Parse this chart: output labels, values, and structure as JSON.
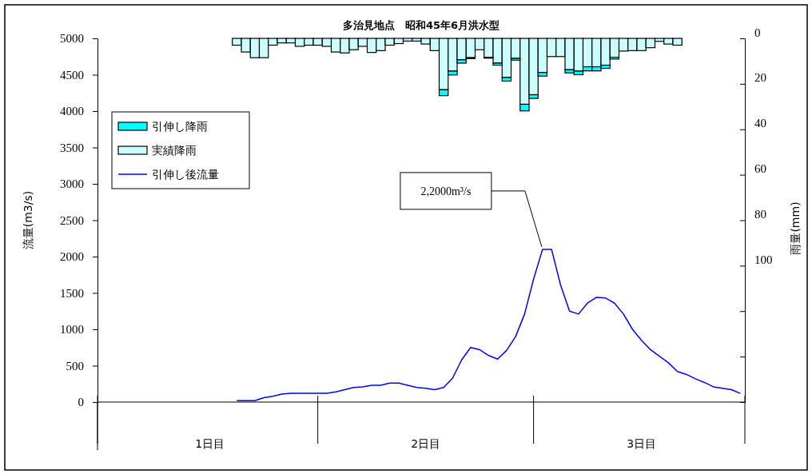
{
  "chart_data": {
    "type": "bar",
    "title": "多治見地点　昭和45年6月洪水型",
    "ylabel": "流量(m3/s)",
    "y2label": "雨量(mm)",
    "categories": [
      null,
      null,
      null,
      null,
      null,
      null,
      null,
      null,
      null,
      null,
      null,
      null,
      "1日目",
      null,
      null,
      null,
      null,
      null,
      null,
      null,
      null,
      null,
      null,
      null,
      null,
      null,
      null,
      null,
      null,
      null,
      null,
      null,
      null,
      null,
      null,
      null,
      "2日目",
      null,
      null,
      null,
      null,
      null,
      null,
      null,
      null,
      null,
      null,
      null,
      null,
      null,
      null,
      null,
      null,
      null,
      null,
      null,
      null,
      null,
      null,
      null,
      "3日目",
      null,
      null,
      null,
      null,
      null,
      null,
      null,
      null,
      null,
      null,
      null
    ],
    "ylim": [
      0,
      5000
    ],
    "yticks": [
      0,
      500,
      1000,
      1500,
      2000,
      2500,
      3000,
      3500,
      4000,
      4500,
      5000
    ],
    "y2lim": [
      160,
      0
    ],
    "y2ticks": [
      0,
      20,
      40,
      60,
      80,
      100,
      {
        "value": 120,
        "label": null
      },
      {
        "value": 140,
        "label": null
      },
      {
        "value": 160,
        "label": null
      }
    ],
    "stacked": true,
    "grid": false,
    "legend": "top left",
    "marker": "none",
    "line_style": "solid",
    "annotations": [
      "2,2000m³/s"
    ],
    "series": [
      {
        "name": "実績降雨",
        "axis": "y2",
        "color": "#ccffff",
        "values": [
          null,
          null,
          null,
          null,
          null,
          null,
          null,
          null,
          null,
          null,
          null,
          null,
          null,
          null,
          null,
          3,
          6,
          8.5,
          8.5,
          3,
          2,
          2,
          3.5,
          3,
          3,
          3.5,
          6,
          6.4,
          5,
          3.5,
          6.2,
          5.4,
          3,
          2.3,
          1.2,
          1.2,
          2.5,
          5.4,
          22.6,
          14.4,
          9.4,
          8.5,
          5,
          8.4,
          10.9,
          17.2,
          8.8,
          29,
          24.8,
          15,
          8,
          8,
          13.8,
          14.4,
          12.5,
          12.5,
          11.8,
          8.3,
          5.6,
          5.4,
          5.4,
          4.1,
          1.3,
          2.5,
          3,
          null,
          null,
          null,
          null,
          null,
          null,
          null
        ]
      },
      {
        "name": "引伸し降雨",
        "axis": "y2",
        "color": "#00ffff",
        "values": [
          null,
          null,
          null,
          null,
          null,
          null,
          null,
          null,
          null,
          null,
          null,
          null,
          null,
          null,
          null,
          null,
          null,
          null,
          null,
          null,
          null,
          null,
          null,
          null,
          null,
          null,
          null,
          null,
          null,
          null,
          null,
          null,
          null,
          null,
          null,
          null,
          null,
          null,
          2.6,
          1.7,
          1.5,
          0.4,
          null,
          0.3,
          0.9,
          1.6,
          0.8,
          2.9,
          1.6,
          1.6,
          null,
          null,
          1.4,
          1.6,
          1.8,
          1.8,
          1.4,
          0.8,
          null,
          null,
          null,
          null,
          null,
          null,
          null,
          null,
          null,
          null,
          null,
          null,
          null,
          null
        ]
      },
      {
        "name": "引伸し後流量",
        "type": "line",
        "color": "#0000ff",
        "values": [
          null,
          null,
          null,
          null,
          null,
          null,
          null,
          null,
          null,
          null,
          null,
          null,
          null,
          null,
          null,
          20,
          20,
          20,
          60,
          80,
          110,
          120,
          120,
          120,
          120,
          120,
          140,
          170,
          200,
          210,
          230,
          230,
          260,
          260,
          230,
          200,
          190,
          170,
          200,
          330,
          580,
          750,
          720,
          640,
          590,
          710,
          900,
          1210,
          1690,
          2100,
          2100,
          1610,
          1250,
          1210,
          1360,
          1440,
          1430,
          1360,
          1210,
          1000,
          850,
          720,
          630,
          540,
          420,
          380,
          320,
          270,
          210,
          190,
          170,
          120
        ]
      }
    ]
  }
}
